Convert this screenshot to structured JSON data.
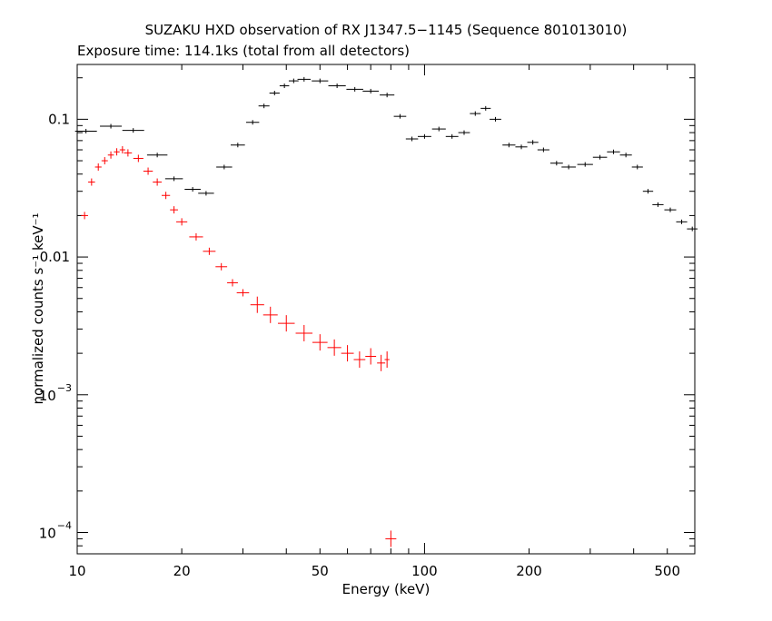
{
  "chart_data": {
    "type": "scatter",
    "title": "SUZAKU HXD observation of RX J1347.5−1145 (Sequence 801013010)",
    "subtitle": "Exposure time: 114.1ks (total from all detectors)",
    "xlabel": "Energy (keV)",
    "ylabel": "normalized counts s⁻¹ keV⁻¹",
    "x_scale": "log",
    "y_scale": "log",
    "xlim": [
      10,
      600
    ],
    "ylim": [
      7e-05,
      0.25
    ],
    "x_ticks": [
      {
        "value": 10,
        "label": "10"
      },
      {
        "value": 20,
        "label": "20"
      },
      {
        "value": 50,
        "label": "50"
      },
      {
        "value": 100,
        "label": "100"
      },
      {
        "value": 200,
        "label": "200"
      },
      {
        "value": 500,
        "label": "500"
      }
    ],
    "y_ticks": [
      {
        "value": 0.1,
        "label": "0.1",
        "type": "plain"
      },
      {
        "value": 0.01,
        "label": "0.01",
        "type": "plain"
      },
      {
        "value": 0.001,
        "mantissa": "10",
        "exponent": "−3",
        "type": "power"
      },
      {
        "value": 0.0001,
        "mantissa": "10",
        "exponent": "−4",
        "type": "power"
      }
    ],
    "grid": false,
    "legend": "none",
    "series": [
      {
        "color": "#000000",
        "points": [
          [
            10.6,
            0.082
          ],
          [
            12.5,
            0.089
          ],
          [
            14.5,
            0.083
          ],
          [
            17.0,
            0.055
          ],
          [
            19.0,
            0.037
          ],
          [
            21.5,
            0.031
          ],
          [
            23.5,
            0.029
          ],
          [
            26.5,
            0.045
          ],
          [
            29.0,
            0.065
          ],
          [
            32.0,
            0.095
          ],
          [
            34.5,
            0.125
          ],
          [
            37.0,
            0.155
          ],
          [
            39.5,
            0.175
          ],
          [
            42.0,
            0.19
          ],
          [
            45.0,
            0.195
          ],
          [
            50.0,
            0.19
          ],
          [
            56.0,
            0.175
          ],
          [
            63.0,
            0.165
          ],
          [
            70.0,
            0.16
          ],
          [
            78.0,
            0.15
          ],
          [
            85.0,
            0.105
          ],
          [
            92.0,
            0.072
          ],
          [
            100.0,
            0.075
          ],
          [
            110.0,
            0.085
          ],
          [
            120.0,
            0.075
          ],
          [
            130.0,
            0.08
          ],
          [
            140.0,
            0.11
          ],
          [
            150.0,
            0.12
          ],
          [
            160.0,
            0.1
          ],
          [
            175.0,
            0.065
          ],
          [
            190.0,
            0.063
          ],
          [
            205.0,
            0.068
          ],
          [
            220.0,
            0.06
          ],
          [
            240.0,
            0.048
          ],
          [
            260.0,
            0.045
          ],
          [
            290.0,
            0.047
          ],
          [
            320.0,
            0.053
          ],
          [
            350.0,
            0.058
          ],
          [
            380.0,
            0.055
          ],
          [
            410.0,
            0.045
          ],
          [
            440.0,
            0.03
          ],
          [
            470.0,
            0.024
          ],
          [
            510.0,
            0.022
          ],
          [
            550.0,
            0.018
          ],
          [
            590.0,
            0.016
          ]
        ]
      },
      {
        "color": "#ff0000",
        "points": [
          [
            10.5,
            0.02
          ],
          [
            11.0,
            0.035
          ],
          [
            11.5,
            0.045
          ],
          [
            12.0,
            0.05
          ],
          [
            12.5,
            0.055
          ],
          [
            13.0,
            0.058
          ],
          [
            13.5,
            0.06
          ],
          [
            14.0,
            0.057
          ],
          [
            15.0,
            0.052
          ],
          [
            16.0,
            0.042
          ],
          [
            17.0,
            0.035
          ],
          [
            18.0,
            0.028
          ],
          [
            19.0,
            0.022
          ],
          [
            20.0,
            0.018
          ],
          [
            22.0,
            0.014
          ],
          [
            24.0,
            0.011
          ],
          [
            26.0,
            0.0085
          ],
          [
            28.0,
            0.0065
          ],
          [
            30.0,
            0.0055
          ],
          [
            33.0,
            0.0045
          ],
          [
            36.0,
            0.0038
          ],
          [
            40.0,
            0.0033
          ],
          [
            45.0,
            0.0028
          ],
          [
            50.0,
            0.0024
          ],
          [
            55.0,
            0.0022
          ],
          [
            60.0,
            0.002
          ],
          [
            65.0,
            0.0018
          ],
          [
            70.0,
            0.0019
          ],
          [
            75.0,
            0.0017
          ],
          [
            78.0,
            0.0018
          ],
          [
            80.0,
            9e-05
          ]
        ]
      }
    ]
  }
}
